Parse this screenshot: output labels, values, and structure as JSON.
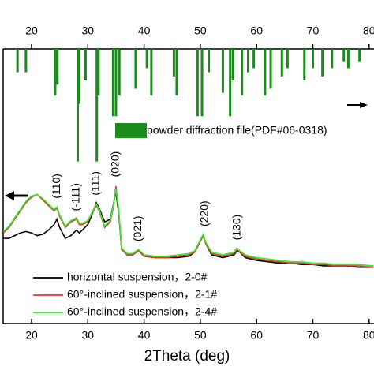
{
  "chart_data": {
    "type": "line",
    "xlabel": "2Theta (deg)",
    "xlim": [
      15,
      80.8
    ],
    "xticks": [
      20,
      30,
      40,
      50,
      60,
      70,
      80
    ],
    "ylim": [
      0,
      100
    ],
    "x": [
      15,
      16,
      17,
      18,
      19,
      20,
      21,
      22,
      23,
      24,
      24.5,
      25,
      26,
      27,
      28,
      28.5,
      29,
      30,
      31,
      31.5,
      32,
      33,
      34,
      34.5,
      35,
      35.5,
      36,
      37,
      38,
      39,
      40,
      42,
      44,
      46,
      48,
      49,
      50,
      50.5,
      51,
      52,
      54,
      56,
      56.5,
      57,
      58,
      60,
      62,
      64,
      66,
      68,
      70,
      72,
      74,
      76,
      78,
      80.8
    ],
    "series": [
      {
        "name": "horizontal suspension，2-0#",
        "color": "#000000",
        "values": [
          31,
          31,
          32,
          33,
          33.5,
          33,
          32,
          32.5,
          34,
          36,
          38,
          35,
          31,
          32,
          34,
          33,
          34,
          36,
          41,
          44,
          42,
          37,
          38,
          43,
          48,
          40,
          27,
          25,
          25,
          26.5,
          24.5,
          24,
          24,
          24,
          24.5,
          26,
          30,
          32,
          29,
          25,
          24,
          25,
          26.5,
          26,
          24,
          23,
          22.5,
          22,
          22,
          21.5,
          21.5,
          21,
          21,
          21,
          20.5,
          20.5
        ]
      },
      {
        "name": "60°-inclined suspension，2-1#",
        "color": "#e8322a",
        "values": [
          33,
          35,
          38,
          41,
          44,
          46,
          47,
          45,
          43,
          41,
          42,
          39,
          35,
          37,
          38,
          36,
          36,
          37,
          41,
          43,
          41,
          35,
          37,
          42,
          50,
          41,
          27,
          25,
          25,
          26.5,
          24.5,
          24,
          24,
          24.5,
          25,
          26,
          30,
          32,
          29,
          25.5,
          24.5,
          25.5,
          27,
          26,
          24.5,
          23.5,
          23,
          22.5,
          22,
          22,
          21.5,
          21.5,
          21,
          21,
          21,
          20.5
        ]
      },
      {
        "name": "60°-inclined suspension，2-4#",
        "color": "#33ee33",
        "values": [
          33.5,
          35.5,
          38.5,
          41.5,
          44.5,
          46.5,
          47,
          45.5,
          43.5,
          41.5,
          42.5,
          39.5,
          35.5,
          37.5,
          38.5,
          36.5,
          36.5,
          37.5,
          41.5,
          43.5,
          41.5,
          35.5,
          37.5,
          42.5,
          49,
          41.5,
          27.5,
          25.5,
          25.5,
          27,
          25,
          24.5,
          24.5,
          25,
          25.5,
          26.5,
          30.5,
          32.5,
          29.5,
          26,
          25,
          26,
          27.5,
          26.5,
          25,
          24,
          23.5,
          23,
          22.5,
          22.5,
          22,
          22,
          21.5,
          21.5,
          21.5,
          21
        ]
      }
    ],
    "reference": {
      "name": "powder diffraction file(PDF#06-0318)",
      "color": "#1a8c1a",
      "x": [
        17.5,
        19,
        24.2,
        24.6,
        28.2,
        28.5,
        29.6,
        31.6,
        31.9,
        34.5,
        35,
        35.6,
        38.5,
        40.5,
        41.3,
        45.3,
        45.8,
        49.5,
        50.3,
        51.5,
        54,
        55.3,
        55.8,
        57.4,
        58.5,
        59.5,
        61.5,
        62.5,
        64.5,
        65.5,
        68.5,
        70,
        71.7,
        73.4,
        75.5,
        76.3,
        78.3
      ],
      "values": [
        8.5,
        8.5,
        17,
        13,
        41,
        20,
        11.5,
        41,
        17,
        24.5,
        24.5,
        17,
        14.5,
        7,
        17,
        10,
        17,
        24.5,
        24.5,
        8.5,
        16,
        24.5,
        11.5,
        17,
        8.5,
        7,
        17,
        14.5,
        10,
        7,
        11.5,
        7,
        10,
        7,
        4.5,
        7,
        4.5
      ]
    },
    "annotations": [
      {
        "x": 24.5,
        "label": "(110)"
      },
      {
        "x": 28,
        "label": "(-111)"
      },
      {
        "x": 31.5,
        "label": "(111)"
      },
      {
        "x": 35,
        "label": "(020)"
      },
      {
        "x": 39,
        "label": "(021)"
      },
      {
        "x": 50.8,
        "label": "(220)"
      },
      {
        "x": 56.6,
        "label": "(130)"
      }
    ]
  }
}
